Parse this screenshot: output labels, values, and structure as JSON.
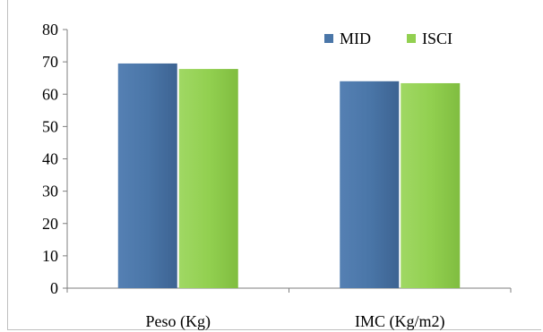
{
  "chart_data": {
    "type": "bar",
    "title": "",
    "xlabel": "",
    "ylabel": "",
    "categories": [
      "Peso (Kg)",
      "IMC (Kg/m2)"
    ],
    "series": [
      {
        "name": "MID",
        "values": [
          69.5,
          64.0
        ],
        "color": "#4a76a8"
      },
      {
        "name": "ISCI",
        "values": [
          67.8,
          63.4
        ],
        "color": "#92d050"
      }
    ],
    "ylim": [
      0,
      80
    ],
    "yticks": [
      0,
      10,
      20,
      30,
      40,
      50,
      60,
      70,
      80
    ],
    "grid": false,
    "legend": "top-right"
  }
}
